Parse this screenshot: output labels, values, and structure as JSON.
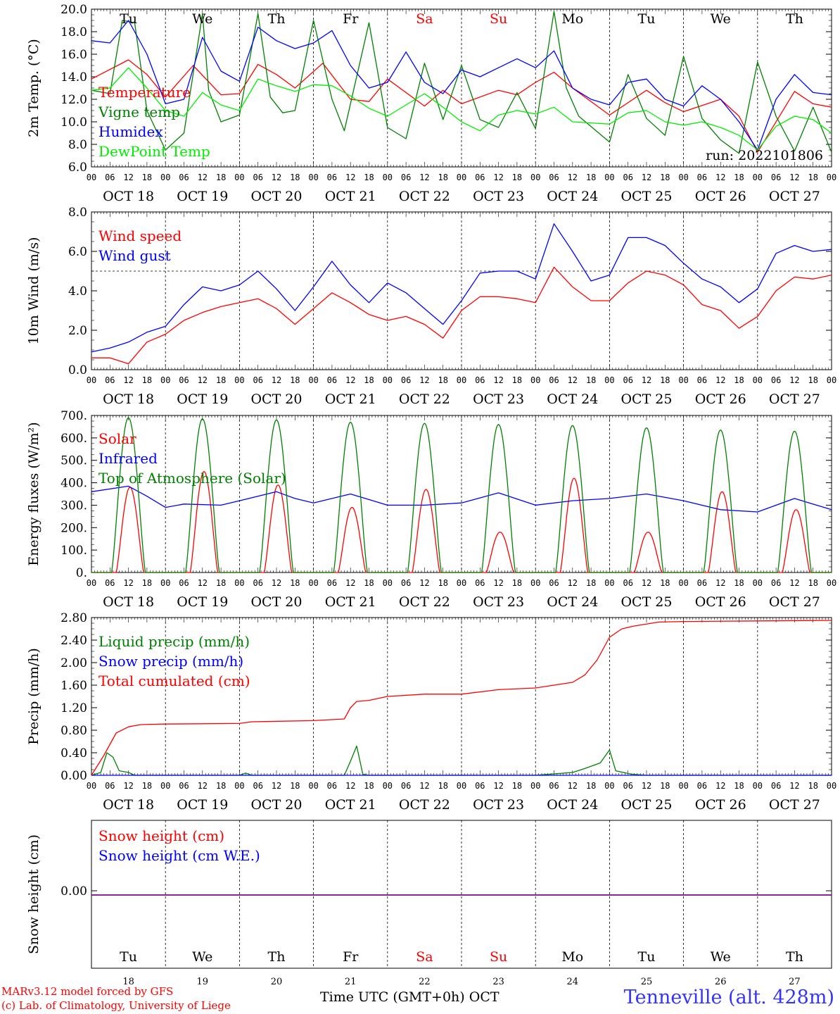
{
  "chart_data": [
    {
      "type": "line",
      "ylabel": "2m Temp. (°C)",
      "ylim": [
        6.0,
        20.0
      ],
      "yticks": [
        "6.0",
        "8.0",
        "10.0",
        "12.0",
        "14.0",
        "16.0",
        "18.0",
        "20.0"
      ],
      "ytick_values": [
        6,
        8,
        10,
        12,
        14,
        16,
        18,
        20
      ],
      "annotation": "run: 2022101806",
      "series": [
        {
          "name": "Temperature",
          "color": "#ff0000",
          "x": [
            0,
            12,
            18,
            24,
            33,
            42,
            48,
            54,
            60,
            66,
            75,
            84,
            90,
            96,
            108,
            114,
            120,
            132,
            138,
            144,
            150,
            156,
            168,
            180,
            186,
            192,
            204,
            210,
            216,
            228,
            234,
            240
          ],
          "values": [
            13.8,
            15.5,
            14.2,
            12.2,
            15.0,
            12.4,
            12.5,
            15.1,
            14.2,
            13.0,
            15.2,
            12.0,
            11.8,
            13.8,
            11.4,
            12.8,
            11.6,
            12.8,
            12.4,
            13.5,
            14.4,
            13.0,
            10.6,
            12.8,
            11.7,
            10.9,
            12.0,
            10.5,
            7.3,
            12.7,
            11.6,
            11.3
          ]
        },
        {
          "name": "Vigne temp",
          "color": "#008000",
          "x": [
            0,
            6,
            10,
            14,
            18,
            24,
            30,
            36,
            38,
            42,
            48,
            54,
            58,
            62,
            66,
            72,
            78,
            82,
            90,
            96,
            102,
            108,
            114,
            120,
            126,
            132,
            138,
            144,
            150,
            154,
            158,
            168,
            174,
            180,
            186,
            192,
            198,
            204,
            210,
            216,
            222,
            228,
            234,
            240
          ],
          "values": [
            12.8,
            12.5,
            19.0,
            18.8,
            11.0,
            7.5,
            9.0,
            19.6,
            12.8,
            10.0,
            10.6,
            19.6,
            12.2,
            10.8,
            11.0,
            19.0,
            12.0,
            9.2,
            18.8,
            9.5,
            8.5,
            15.2,
            10.2,
            15.0,
            10.2,
            9.5,
            12.6,
            9.4,
            19.8,
            13.0,
            10.5,
            8.2,
            14.2,
            10.3,
            8.8,
            15.8,
            10.3,
            8.4,
            7.2,
            15.3,
            10.5,
            7.4,
            11.3,
            7.3
          ]
        },
        {
          "name": "Humidex",
          "color": "#0000ff",
          "x": [
            0,
            6,
            12,
            18,
            24,
            30,
            36,
            42,
            48,
            54,
            60,
            66,
            72,
            78,
            84,
            90,
            96,
            102,
            108,
            114,
            120,
            126,
            132,
            138,
            144,
            150,
            156,
            162,
            168,
            174,
            180,
            186,
            192,
            198,
            204,
            210,
            216,
            222,
            228,
            234,
            240
          ],
          "values": [
            17.2,
            17.0,
            19.0,
            16.0,
            11.6,
            12.0,
            17.5,
            14.5,
            13.6,
            18.4,
            17.2,
            16.5,
            17.0,
            18.1,
            15.0,
            13.0,
            13.5,
            16.2,
            13.5,
            12.5,
            14.6,
            14.0,
            14.8,
            15.6,
            14.8,
            16.3,
            13.0,
            12.0,
            11.5,
            13.5,
            13.8,
            12.0,
            11.4,
            13.2,
            12.0,
            10.0,
            7.5,
            12.0,
            14.2,
            12.6,
            12.4
          ]
        },
        {
          "name": "DewPoint Temp",
          "color": "#00ee00",
          "x": [
            0,
            6,
            12,
            18,
            24,
            30,
            36,
            42,
            48,
            54,
            60,
            66,
            72,
            78,
            84,
            90,
            96,
            102,
            108,
            114,
            120,
            126,
            132,
            138,
            144,
            150,
            156,
            162,
            168,
            174,
            180,
            186,
            192,
            198,
            204,
            210,
            216,
            222,
            228,
            234,
            240
          ],
          "values": [
            12.8,
            13.0,
            14.8,
            13.0,
            11.0,
            10.5,
            12.6,
            11.5,
            11.0,
            13.8,
            13.2,
            12.7,
            13.3,
            13.2,
            12.3,
            11.2,
            10.5,
            11.5,
            12.5,
            11.3,
            10.0,
            9.2,
            10.6,
            11.0,
            10.7,
            11.3,
            10.0,
            9.9,
            9.8,
            10.8,
            11.0,
            10.0,
            9.7,
            10.0,
            9.5,
            8.8,
            7.5,
            9.6,
            10.5,
            10.2,
            9.0
          ]
        }
      ]
    },
    {
      "type": "line",
      "ylabel": "10m Wind (m/s)",
      "ylim": [
        0.0,
        8.0
      ],
      "yticks": [
        "0.0",
        "2.0",
        "4.0",
        "6.0",
        "8.0"
      ],
      "ytick_values": [
        0,
        2,
        4,
        6,
        8
      ],
      "reference_line": 5.0,
      "series": [
        {
          "name": "Wind speed",
          "color": "#ff0000",
          "x": [
            0,
            6,
            12,
            18,
            24,
            30,
            36,
            42,
            48,
            54,
            60,
            66,
            72,
            78,
            84,
            90,
            96,
            102,
            108,
            114,
            120,
            126,
            132,
            138,
            144,
            150,
            156,
            162,
            168,
            174,
            180,
            186,
            192,
            198,
            204,
            210,
            216,
            222,
            228,
            234,
            240
          ],
          "values": [
            0.6,
            0.6,
            0.3,
            1.4,
            1.8,
            2.5,
            2.9,
            3.2,
            3.4,
            3.6,
            3.1,
            2.3,
            3.1,
            3.9,
            3.4,
            2.8,
            2.5,
            2.7,
            2.3,
            1.6,
            3.0,
            3.7,
            3.7,
            3.6,
            3.4,
            5.2,
            4.2,
            3.5,
            3.5,
            4.4,
            5.0,
            4.8,
            4.3,
            3.3,
            3.0,
            2.1,
            2.7,
            4.0,
            4.7,
            4.6,
            4.8
          ]
        },
        {
          "name": "Wind gust",
          "color": "#0000ff",
          "x": [
            0,
            6,
            12,
            18,
            24,
            30,
            36,
            42,
            48,
            54,
            60,
            66,
            72,
            78,
            84,
            90,
            96,
            102,
            108,
            114,
            120,
            126,
            132,
            138,
            144,
            150,
            156,
            162,
            168,
            174,
            180,
            186,
            192,
            198,
            204,
            210,
            216,
            222,
            228,
            234,
            240
          ],
          "values": [
            0.9,
            1.1,
            1.4,
            1.9,
            2.2,
            3.3,
            4.2,
            4.0,
            4.3,
            5.0,
            4.1,
            3.0,
            4.2,
            5.5,
            4.3,
            3.4,
            4.4,
            3.9,
            3.1,
            2.3,
            3.5,
            4.9,
            5.0,
            5.0,
            4.6,
            7.4,
            6.0,
            4.5,
            4.8,
            6.7,
            6.7,
            6.3,
            5.4,
            4.6,
            4.2,
            3.4,
            4.1,
            5.9,
            6.3,
            6.0,
            6.1
          ]
        }
      ]
    },
    {
      "type": "line",
      "ylabel": "Energy fluxes (W/m²)",
      "ylim": [
        0,
        700
      ],
      "yticks": [
        "0.",
        "100.",
        "200.",
        "300.",
        "400.",
        "500.",
        "600.",
        "700."
      ],
      "ytick_values": [
        0,
        100,
        200,
        300,
        400,
        500,
        600,
        700
      ],
      "series": [
        {
          "name": "Solar",
          "color": "#ff0000",
          "type": "daily",
          "peaks": [
            380,
            450,
            390,
            290,
            370,
            180,
            420,
            180,
            360,
            280
          ],
          "start_h": 8,
          "end_h": 17,
          "peak_h": 12
        },
        {
          "name": "Infrared",
          "color": "#0000ff",
          "x": [
            0,
            12,
            18,
            24,
            30,
            42,
            48,
            60,
            66,
            72,
            84,
            96,
            108,
            120,
            132,
            144,
            156,
            168,
            180,
            192,
            204,
            216,
            228,
            240
          ],
          "values": [
            360,
            385,
            340,
            290,
            305,
            300,
            320,
            360,
            330,
            310,
            350,
            300,
            300,
            310,
            355,
            300,
            320,
            330,
            350,
            320,
            280,
            270,
            330,
            280
          ]
        },
        {
          "name": "Top of Atmosphere (Solar)",
          "color": "#008000",
          "type": "daily",
          "peaks": [
            690,
            685,
            680,
            670,
            665,
            660,
            655,
            645,
            635,
            630
          ],
          "start_h": 6.5,
          "end_h": 17.5,
          "peak_h": 12
        }
      ]
    },
    {
      "type": "line",
      "ylabel": "Precip (mm/h)",
      "ylim": [
        0.0,
        2.8
      ],
      "yticks": [
        "0.00",
        "0.40",
        "0.80",
        "1.20",
        "1.60",
        "2.00",
        "2.40",
        "2.80"
      ],
      "ytick_values": [
        0,
        0.4,
        0.8,
        1.2,
        1.6,
        2.0,
        2.4,
        2.8
      ],
      "series": [
        {
          "name": "Liquid precip (mm/h)",
          "color": "#008000",
          "x": [
            0,
            3,
            5,
            7,
            9,
            12,
            14,
            16,
            24,
            48,
            50,
            52,
            72,
            82,
            84,
            86,
            88,
            90,
            96,
            144,
            156,
            160,
            165,
            168,
            170,
            175,
            180,
            240
          ],
          "values": [
            0,
            0.05,
            0.4,
            0.32,
            0.08,
            0.05,
            0,
            0,
            0,
            0,
            0.04,
            0,
            0,
            0,
            0.25,
            0.52,
            0.02,
            0,
            0,
            0,
            0.05,
            0.12,
            0.22,
            0.45,
            0.08,
            0.02,
            0,
            0
          ]
        },
        {
          "name": "Snow precip (mm/h)",
          "color": "#0000ff",
          "x": [
            0,
            240
          ],
          "values": [
            0,
            0
          ]
        },
        {
          "name": "Total cumulated (cm)",
          "color": "#ff0000",
          "x": [
            0,
            4,
            8,
            12,
            16,
            24,
            48,
            52,
            72,
            82,
            84,
            86,
            90,
            96,
            108,
            120,
            132,
            144,
            150,
            156,
            160,
            164,
            168,
            172,
            176,
            184,
            192,
            216,
            240
          ],
          "values": [
            0,
            0.35,
            0.75,
            0.86,
            0.9,
            0.91,
            0.92,
            0.95,
            0.97,
            1.0,
            1.2,
            1.31,
            1.33,
            1.4,
            1.44,
            1.44,
            1.52,
            1.55,
            1.6,
            1.65,
            1.78,
            2.05,
            2.45,
            2.6,
            2.65,
            2.72,
            2.73,
            2.74,
            2.75
          ]
        }
      ]
    },
    {
      "type": "line",
      "ylabel": "Snow height (cm)",
      "yticks": [
        "0.00"
      ],
      "ytick_values": [
        0
      ],
      "series": [
        {
          "name": "Snow height (cm)",
          "color": "#ff0000",
          "x": [
            0,
            240
          ],
          "values": [
            0,
            0
          ]
        },
        {
          "name": "Snow height (cm W.E.)",
          "color": "#0000ff",
          "x": [
            0,
            240
          ],
          "values": [
            0,
            0
          ]
        }
      ]
    }
  ],
  "x_axis": {
    "hour_labels": [
      "00",
      "06",
      "12",
      "18"
    ],
    "date_labels": [
      "OCT 18",
      "OCT 19",
      "OCT 20",
      "OCT 21",
      "OCT 22",
      "OCT 23",
      "OCT 24",
      "OCT 25",
      "OCT 26",
      "OCT 27"
    ],
    "weekdays": [
      "Tu",
      "We",
      "Th",
      "Fr",
      "Sa",
      "Su",
      "Mo",
      "Tu",
      "We",
      "Th"
    ],
    "weekend_color": "#ff0000",
    "day_numbers": [
      "18",
      "19",
      "20",
      "21",
      "22",
      "23",
      "24",
      "25",
      "26",
      "27"
    ],
    "title": "Time UTC (GMT+0h)",
    "month": "OCT"
  },
  "footer": {
    "credit_line1": "MARv3.12 model forced by GFS",
    "credit_line2": "(c) Lab. of Climatology, University of Liege",
    "location": "Tenneville (alt. 428m)",
    "location_color": "#3333ff"
  }
}
